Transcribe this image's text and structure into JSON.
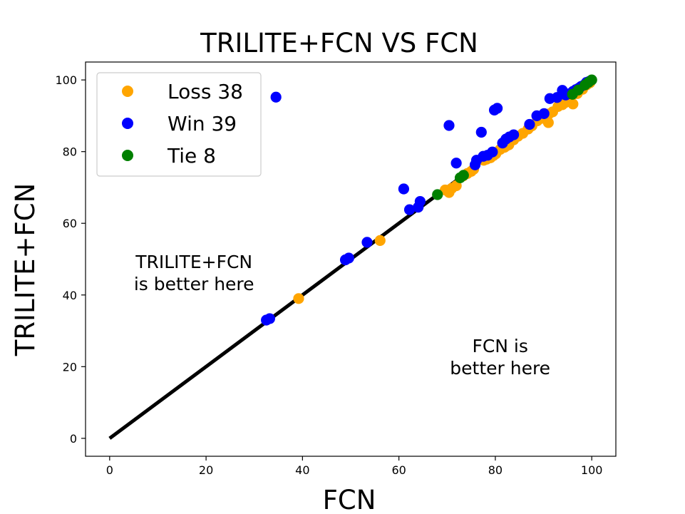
{
  "chart_data": {
    "type": "scatter",
    "title": "TRILITE+FCN VS FCN",
    "xlabel": "FCN",
    "ylabel": "TRILITE+FCN",
    "xlim": [
      -5,
      105
    ],
    "ylim": [
      -5,
      105
    ],
    "xticks": [
      0,
      20,
      40,
      60,
      80,
      100
    ],
    "yticks": [
      0,
      20,
      40,
      60,
      80,
      100
    ],
    "grid": false,
    "legend_position": "top-left",
    "diagonal": {
      "from": [
        0,
        0
      ],
      "to": [
        100,
        100
      ],
      "color": "#000000"
    },
    "series": [
      {
        "name": "Loss 38",
        "color": "#ffa500",
        "points": [
          [
            39.2,
            39.0
          ],
          [
            56.1,
            55.2
          ],
          [
            69.6,
            69.3
          ],
          [
            70.4,
            68.6
          ],
          [
            71.0,
            69.8
          ],
          [
            71.9,
            70.5
          ],
          [
            73.3,
            73.2
          ],
          [
            74.2,
            73.9
          ],
          [
            75.0,
            74.5
          ],
          [
            75.5,
            75.1
          ],
          [
            77.6,
            77.6
          ],
          [
            78.2,
            77.9
          ],
          [
            79.0,
            78.3
          ],
          [
            79.6,
            78.9
          ],
          [
            80.1,
            79.4
          ],
          [
            81.0,
            80.6
          ],
          [
            81.9,
            81.2
          ],
          [
            82.3,
            81.6
          ],
          [
            82.8,
            81.9
          ],
          [
            83.8,
            83.3
          ],
          [
            84.7,
            84.3
          ],
          [
            85.7,
            85.1
          ],
          [
            86.8,
            86.3
          ],
          [
            87.6,
            87.2
          ],
          [
            88.7,
            88.6
          ],
          [
            89.8,
            89.3
          ],
          [
            91.0,
            88.1
          ],
          [
            91.1,
            90.5
          ],
          [
            91.9,
            91.1
          ],
          [
            93.0,
            92.6
          ],
          [
            93.9,
            93.1
          ],
          [
            94.4,
            93.6
          ],
          [
            95.3,
            94.6
          ],
          [
            96.1,
            93.3
          ],
          [
            97.0,
            96.2
          ],
          [
            98.1,
            97.4
          ],
          [
            98.9,
            98.6
          ],
          [
            99.6,
            99.2
          ]
        ]
      },
      {
        "name": "Win 39",
        "color": "#0000ff",
        "points": [
          [
            32.5,
            33.0
          ],
          [
            33.2,
            33.4
          ],
          [
            34.5,
            95.2
          ],
          [
            48.9,
            49.8
          ],
          [
            49.6,
            50.3
          ],
          [
            53.4,
            54.7
          ],
          [
            61.0,
            69.6
          ],
          [
            62.2,
            63.8
          ],
          [
            64.0,
            64.5
          ],
          [
            64.4,
            66.1
          ],
          [
            70.4,
            87.3
          ],
          [
            71.9,
            76.8
          ],
          [
            75.8,
            76.3
          ],
          [
            76.1,
            77.6
          ],
          [
            77.1,
            85.4
          ],
          [
            77.5,
            78.7
          ],
          [
            78.4,
            79.0
          ],
          [
            79.4,
            79.9
          ],
          [
            79.8,
            91.6
          ],
          [
            80.4,
            92.1
          ],
          [
            81.5,
            82.4
          ],
          [
            82.2,
            83.5
          ],
          [
            82.9,
            84.1
          ],
          [
            83.8,
            84.7
          ],
          [
            87.1,
            87.6
          ],
          [
            88.6,
            90.0
          ],
          [
            90.1,
            90.6
          ],
          [
            91.3,
            94.8
          ],
          [
            92.8,
            95.1
          ],
          [
            93.9,
            97.1
          ],
          [
            94.6,
            95.8
          ],
          [
            95.5,
            96.2
          ],
          [
            96.1,
            96.8
          ],
          [
            96.7,
            97.3
          ],
          [
            97.3,
            97.7
          ],
          [
            97.8,
            98.2
          ],
          [
            98.4,
            98.6
          ],
          [
            98.9,
            99.3
          ],
          [
            99.5,
            99.6
          ]
        ]
      },
      {
        "name": "Tie 8",
        "color": "#008000",
        "points": [
          [
            68.0,
            68.0
          ],
          [
            72.7,
            72.7
          ],
          [
            73.4,
            73.4
          ],
          [
            96.0,
            96.0
          ],
          [
            97.2,
            97.2
          ],
          [
            98.6,
            98.6
          ],
          [
            99.3,
            99.3
          ],
          [
            100.0,
            100.0
          ]
        ]
      }
    ],
    "annotations": [
      {
        "text": [
          "TRILITE+FCN",
          "is better here"
        ],
        "x": 17.5,
        "y": 47.5
      },
      {
        "text": [
          "FCN is",
          "better here"
        ],
        "x": 81.0,
        "y": 24.0
      }
    ]
  }
}
